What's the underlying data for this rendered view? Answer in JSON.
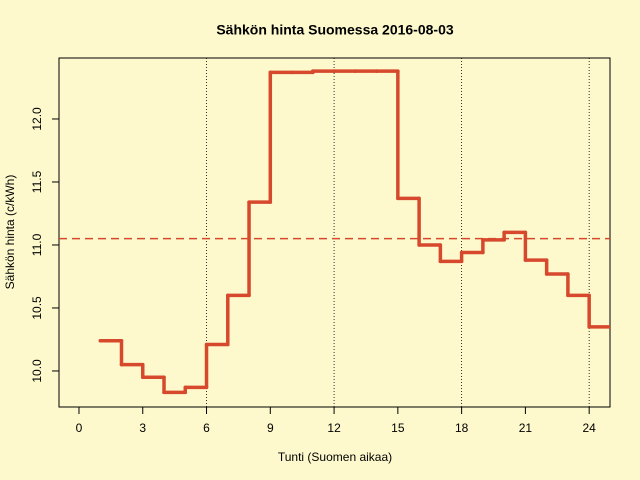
{
  "chart_data": {
    "type": "step",
    "title": "Sähkön hinta Suomessa 2016-08-03",
    "x_label": "Tunti (Suomen aikaa)",
    "y_label": "Sähkön hinta (c/kWh)",
    "x": [
      1,
      2,
      3,
      4,
      5,
      6,
      7,
      8,
      9,
      10,
      11,
      12,
      13,
      14,
      15,
      16,
      17,
      18,
      19,
      20,
      21,
      22,
      23,
      24
    ],
    "values": [
      10.24,
      10.05,
      9.95,
      9.83,
      9.87,
      10.21,
      10.6,
      11.34,
      12.37,
      12.37,
      12.38,
      12.38,
      12.38,
      12.38,
      11.37,
      11.0,
      10.87,
      10.94,
      11.04,
      11.1,
      10.88,
      10.77,
      10.6,
      10.35
    ],
    "color": "#d6492c",
    "mean": 11.05,
    "vlines": [
      6,
      12,
      18,
      24
    ],
    "xlim": [
      -0.94,
      24.98
    ],
    "ylim": [
      9.714,
      12.484
    ],
    "xticks": [
      0,
      3,
      6,
      9,
      12,
      15,
      18,
      21,
      24
    ],
    "yticks": [
      {
        "value": 10,
        "label": "10.0"
      },
      {
        "value": 10.5,
        "label": "10.5"
      },
      {
        "value": 11,
        "label": "11.0"
      },
      {
        "value": 11.5,
        "label": "11.5"
      },
      {
        "value": 12,
        "label": "12.0"
      }
    ]
  }
}
